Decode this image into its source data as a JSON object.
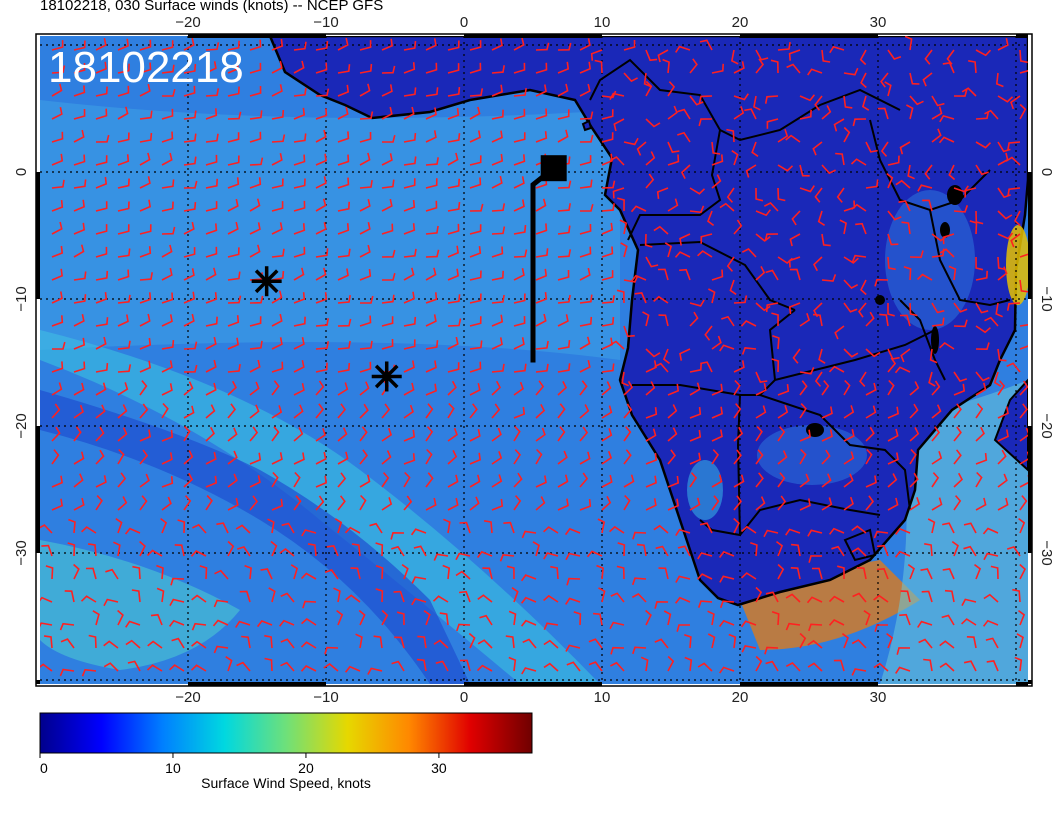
{
  "title": "18102218, 030 Surface winds (knots) -- NCEP GFS",
  "stamp": "18102218",
  "map": {
    "lon_range": [
      -30,
      41
    ],
    "lat_range": [
      -40,
      11
    ],
    "lon_ticks": [
      "−20",
      "−10",
      "0",
      "10",
      "20",
      "30"
    ],
    "lat_ticks": [
      "0",
      "−10",
      "−20",
      "−30"
    ],
    "grid": true,
    "colors": {
      "ocean": "#2f7fe0",
      "land": "#1a28b8",
      "barb": "#ff2020",
      "coast": "#000000"
    }
  },
  "markers": [
    {
      "name": "asterisk",
      "lon": -14.3,
      "lat": -8.6
    },
    {
      "name": "asterisk",
      "lon": -5.6,
      "lat": -16.1
    },
    {
      "name": "square",
      "lon": 6.5,
      "lat": 0.3
    }
  ],
  "track": [
    [
      6.5,
      0.3
    ],
    [
      5.0,
      -1.0
    ],
    [
      5.0,
      -15.0
    ]
  ],
  "colorbar": {
    "title": "Surface Wind Speed, knots",
    "range": [
      0,
      37
    ],
    "ticks": [
      {
        "label": "0",
        "value": 0
      },
      {
        "label": "10",
        "value": 10
      },
      {
        "label": "20",
        "value": 20
      },
      {
        "label": "30",
        "value": 30
      }
    ],
    "stops": [
      "#00008c",
      "#0000ff",
      "#0080ff",
      "#00d8e0",
      "#6ee07a",
      "#e6d800",
      "#ff8800",
      "#e00000",
      "#700000"
    ]
  }
}
